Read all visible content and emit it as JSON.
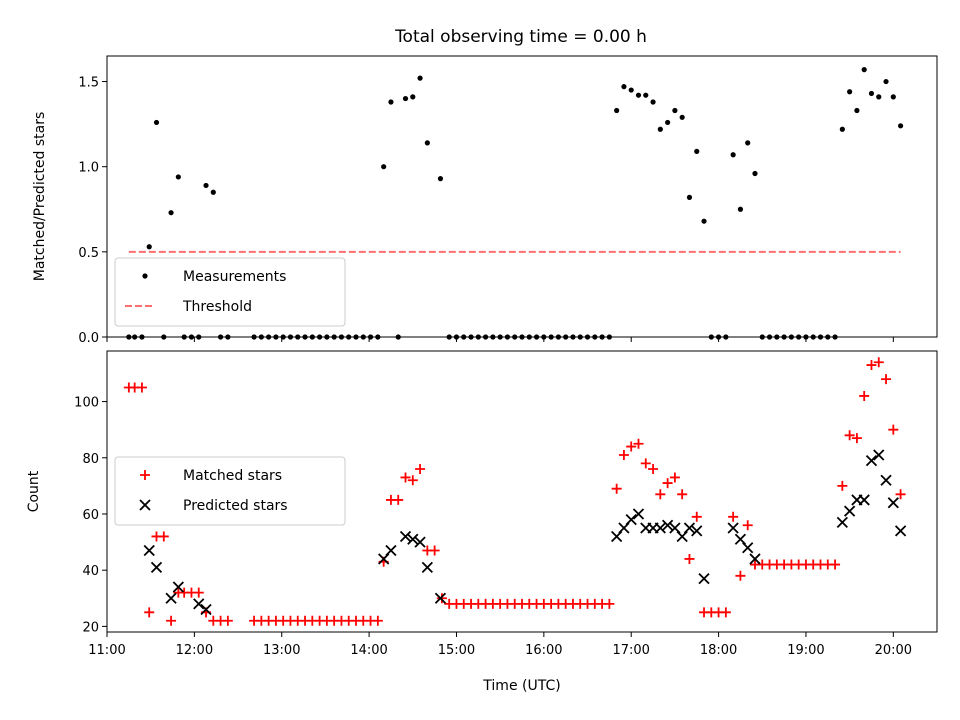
{
  "figure": {
    "title": "Total observing time = 0.00 h"
  },
  "chart_data": [
    {
      "type": "scatter",
      "ylabel": "Matched/Predicted stars",
      "xlim": [
        "11:00",
        "20:30"
      ],
      "ylim": [
        0,
        1.65
      ],
      "yticks": [
        0.0,
        0.5,
        1.0,
        1.5
      ],
      "ytick_labels": [
        "0.0",
        "0.5",
        "1.0",
        "1.5"
      ],
      "xticks": [
        "11:00",
        "12:00",
        "13:00",
        "14:00",
        "15:00",
        "16:00",
        "17:00",
        "18:00",
        "19:00",
        "20:00"
      ],
      "grid": false,
      "legend": {
        "placement": "lower-left",
        "entries": [
          "Measurements",
          "Threshold"
        ]
      },
      "series": [
        {
          "name": "Measurements",
          "marker": "dot",
          "color": "#000000",
          "points": [
            [
              "11:15",
              0
            ],
            [
              "11:19",
              0
            ],
            [
              "11:24",
              0
            ],
            [
              "11:29",
              0.53
            ],
            [
              "11:34",
              1.26
            ],
            [
              "11:39",
              0
            ],
            [
              "11:44",
              0.73
            ],
            [
              "11:49",
              0.94
            ],
            [
              "11:53",
              0
            ],
            [
              "11:58",
              0
            ],
            [
              "12:03",
              0
            ],
            [
              "12:08",
              0.89
            ],
            [
              "12:13",
              0.85
            ],
            [
              "12:18",
              0
            ],
            [
              "12:23",
              0
            ],
            [
              "12:41",
              0
            ],
            [
              "12:46",
              0
            ],
            [
              "12:51",
              0
            ],
            [
              "12:56",
              0
            ],
            [
              "13:01",
              0
            ],
            [
              "13:06",
              0
            ],
            [
              "13:11",
              0
            ],
            [
              "13:16",
              0
            ],
            [
              "13:21",
              0
            ],
            [
              "13:26",
              0
            ],
            [
              "13:31",
              0
            ],
            [
              "13:36",
              0
            ],
            [
              "13:41",
              0
            ],
            [
              "13:46",
              0
            ],
            [
              "13:51",
              0
            ],
            [
              "13:56",
              0
            ],
            [
              "14:01",
              0
            ],
            [
              "14:06",
              0
            ],
            [
              "14:10",
              1.0
            ],
            [
              "14:15",
              1.38
            ],
            [
              "14:20",
              0
            ],
            [
              "14:25",
              1.4
            ],
            [
              "14:30",
              1.41
            ],
            [
              "14:35",
              1.52
            ],
            [
              "14:40",
              1.14
            ],
            [
              "14:49",
              0.93
            ],
            [
              "14:55",
              0
            ],
            [
              "15:00",
              0
            ],
            [
              "15:05",
              0
            ],
            [
              "15:10",
              0
            ],
            [
              "15:15",
              0
            ],
            [
              "15:20",
              0
            ],
            [
              "15:25",
              0
            ],
            [
              "15:30",
              0
            ],
            [
              "15:35",
              0
            ],
            [
              "15:40",
              0
            ],
            [
              "15:45",
              0
            ],
            [
              "15:50",
              0
            ],
            [
              "15:55",
              0
            ],
            [
              "16:00",
              0
            ],
            [
              "16:05",
              0
            ],
            [
              "16:10",
              0
            ],
            [
              "16:15",
              0
            ],
            [
              "16:20",
              0
            ],
            [
              "16:25",
              0
            ],
            [
              "16:30",
              0
            ],
            [
              "16:35",
              0
            ],
            [
              "16:40",
              0
            ],
            [
              "16:45",
              0
            ],
            [
              "16:50",
              1.33
            ],
            [
              "16:55",
              1.47
            ],
            [
              "17:00",
              1.45
            ],
            [
              "17:05",
              1.42
            ],
            [
              "17:10",
              1.42
            ],
            [
              "17:15",
              1.38
            ],
            [
              "17:20",
              1.22
            ],
            [
              "17:25",
              1.26
            ],
            [
              "17:30",
              1.33
            ],
            [
              "17:35",
              1.29
            ],
            [
              "17:40",
              0.82
            ],
            [
              "17:45",
              1.09
            ],
            [
              "17:50",
              0.68
            ],
            [
              "17:55",
              0
            ],
            [
              "18:00",
              0
            ],
            [
              "18:05",
              0
            ],
            [
              "18:10",
              1.07
            ],
            [
              "18:15",
              0.75
            ],
            [
              "18:20",
              1.14
            ],
            [
              "18:25",
              0.96
            ],
            [
              "18:30",
              0
            ],
            [
              "18:35",
              0
            ],
            [
              "18:40",
              0
            ],
            [
              "18:45",
              0
            ],
            [
              "18:50",
              0
            ],
            [
              "18:55",
              0
            ],
            [
              "19:00",
              0
            ],
            [
              "19:05",
              0
            ],
            [
              "19:10",
              0
            ],
            [
              "19:15",
              0
            ],
            [
              "19:20",
              0
            ],
            [
              "19:25",
              1.22
            ],
            [
              "19:30",
              1.44
            ],
            [
              "19:35",
              1.33
            ],
            [
              "19:40",
              1.57
            ],
            [
              "19:45",
              1.43
            ],
            [
              "19:50",
              1.41
            ],
            [
              "19:55",
              1.5
            ],
            [
              "20:00",
              1.41
            ],
            [
              "20:05",
              1.24
            ]
          ]
        },
        {
          "name": "Threshold",
          "style": "dashed",
          "color": "#ff6f6f",
          "points": [
            [
              "11:15",
              0.5
            ],
            [
              "20:05",
              0.5
            ]
          ]
        }
      ]
    },
    {
      "type": "scatter",
      "xlabel": "Time (UTC)",
      "ylabel": "Count",
      "xlim": [
        "11:00",
        "20:30"
      ],
      "ylim": [
        18,
        118
      ],
      "yticks": [
        20,
        40,
        60,
        80,
        100
      ],
      "ytick_labels": [
        "20",
        "40",
        "60",
        "80",
        "100"
      ],
      "xticks": [
        "11:00",
        "12:00",
        "13:00",
        "14:00",
        "15:00",
        "16:00",
        "17:00",
        "18:00",
        "19:00",
        "20:00"
      ],
      "xtick_labels": [
        "11:00",
        "12:00",
        "13:00",
        "14:00",
        "15:00",
        "16:00",
        "17:00",
        "18:00",
        "19:00",
        "20:00"
      ],
      "grid": false,
      "legend": {
        "placement": "center-left",
        "entries": [
          "Matched stars",
          "Predicted stars"
        ]
      },
      "series": [
        {
          "name": "Matched stars",
          "marker": "plus",
          "color": "#ff0000",
          "points": [
            [
              "11:15",
              105
            ],
            [
              "11:19",
              105
            ],
            [
              "11:24",
              105
            ],
            [
              "11:29",
              25
            ],
            [
              "11:34",
              52
            ],
            [
              "11:39",
              52
            ],
            [
              "11:44",
              22
            ],
            [
              "11:49",
              32
            ],
            [
              "11:53",
              32
            ],
            [
              "11:58",
              32
            ],
            [
              "12:03",
              32
            ],
            [
              "12:08",
              25
            ],
            [
              "12:13",
              22
            ],
            [
              "12:18",
              22
            ],
            [
              "12:23",
              22
            ],
            [
              "12:41",
              22
            ],
            [
              "12:46",
              22
            ],
            [
              "12:51",
              22
            ],
            [
              "12:56",
              22
            ],
            [
              "13:01",
              22
            ],
            [
              "13:06",
              22
            ],
            [
              "13:11",
              22
            ],
            [
              "13:16",
              22
            ],
            [
              "13:21",
              22
            ],
            [
              "13:26",
              22
            ],
            [
              "13:31",
              22
            ],
            [
              "13:36",
              22
            ],
            [
              "13:41",
              22
            ],
            [
              "13:46",
              22
            ],
            [
              "13:51",
              22
            ],
            [
              "13:56",
              22
            ],
            [
              "14:01",
              22
            ],
            [
              "14:06",
              22
            ],
            [
              "14:10",
              43
            ],
            [
              "14:15",
              65
            ],
            [
              "14:20",
              65
            ],
            [
              "14:25",
              73
            ],
            [
              "14:30",
              72
            ],
            [
              "14:35",
              76
            ],
            [
              "14:40",
              47
            ],
            [
              "14:45",
              47
            ],
            [
              "14:50",
              30
            ],
            [
              "14:55",
              28
            ],
            [
              "15:00",
              28
            ],
            [
              "15:05",
              28
            ],
            [
              "15:10",
              28
            ],
            [
              "15:15",
              28
            ],
            [
              "15:20",
              28
            ],
            [
              "15:25",
              28
            ],
            [
              "15:30",
              28
            ],
            [
              "15:35",
              28
            ],
            [
              "15:40",
              28
            ],
            [
              "15:45",
              28
            ],
            [
              "15:50",
              28
            ],
            [
              "15:55",
              28
            ],
            [
              "16:00",
              28
            ],
            [
              "16:05",
              28
            ],
            [
              "16:10",
              28
            ],
            [
              "16:15",
              28
            ],
            [
              "16:20",
              28
            ],
            [
              "16:25",
              28
            ],
            [
              "16:30",
              28
            ],
            [
              "16:35",
              28
            ],
            [
              "16:40",
              28
            ],
            [
              "16:45",
              28
            ],
            [
              "16:50",
              69
            ],
            [
              "16:55",
              81
            ],
            [
              "17:00",
              84
            ],
            [
              "17:05",
              85
            ],
            [
              "17:10",
              78
            ],
            [
              "17:15",
              76
            ],
            [
              "17:20",
              67
            ],
            [
              "17:25",
              71
            ],
            [
              "17:30",
              73
            ],
            [
              "17:35",
              67
            ],
            [
              "17:40",
              44
            ],
            [
              "17:45",
              59
            ],
            [
              "17:50",
              25
            ],
            [
              "17:55",
              25
            ],
            [
              "18:00",
              25
            ],
            [
              "18:05",
              25
            ],
            [
              "18:10",
              59
            ],
            [
              "18:15",
              38
            ],
            [
              "18:20",
              56
            ],
            [
              "18:25",
              42
            ],
            [
              "18:30",
              42
            ],
            [
              "18:35",
              42
            ],
            [
              "18:40",
              42
            ],
            [
              "18:45",
              42
            ],
            [
              "18:50",
              42
            ],
            [
              "18:55",
              42
            ],
            [
              "19:00",
              42
            ],
            [
              "19:05",
              42
            ],
            [
              "19:10",
              42
            ],
            [
              "19:15",
              42
            ],
            [
              "19:20",
              42
            ],
            [
              "19:25",
              70
            ],
            [
              "19:30",
              88
            ],
            [
              "19:35",
              87
            ],
            [
              "19:40",
              102
            ],
            [
              "19:45",
              113
            ],
            [
              "19:50",
              114
            ],
            [
              "19:55",
              108
            ],
            [
              "20:00",
              90
            ],
            [
              "20:05",
              67
            ]
          ]
        },
        {
          "name": "Predicted stars",
          "marker": "x",
          "color": "#000000",
          "points": [
            [
              "11:29",
              47
            ],
            [
              "11:34",
              41
            ],
            [
              "11:44",
              30
            ],
            [
              "11:49",
              34
            ],
            [
              "12:03",
              28
            ],
            [
              "12:08",
              26
            ],
            [
              "14:10",
              44
            ],
            [
              "14:15",
              47
            ],
            [
              "14:25",
              52
            ],
            [
              "14:30",
              51
            ],
            [
              "14:35",
              50
            ],
            [
              "14:40",
              41
            ],
            [
              "14:49",
              30
            ],
            [
              "16:50",
              52
            ],
            [
              "16:55",
              55
            ],
            [
              "17:00",
              58
            ],
            [
              "17:05",
              60
            ],
            [
              "17:10",
              55
            ],
            [
              "17:15",
              55
            ],
            [
              "17:20",
              55
            ],
            [
              "17:25",
              56
            ],
            [
              "17:30",
              55
            ],
            [
              "17:35",
              52
            ],
            [
              "17:40",
              55
            ],
            [
              "17:45",
              54
            ],
            [
              "17:50",
              37
            ],
            [
              "18:10",
              55
            ],
            [
              "18:15",
              51
            ],
            [
              "18:20",
              48
            ],
            [
              "18:25",
              44
            ],
            [
              "19:25",
              57
            ],
            [
              "19:30",
              61
            ],
            [
              "19:35",
              65
            ],
            [
              "19:40",
              65
            ],
            [
              "19:45",
              79
            ],
            [
              "19:50",
              81
            ],
            [
              "19:55",
              72
            ],
            [
              "20:00",
              64
            ],
            [
              "20:05",
              54
            ]
          ]
        }
      ]
    }
  ]
}
